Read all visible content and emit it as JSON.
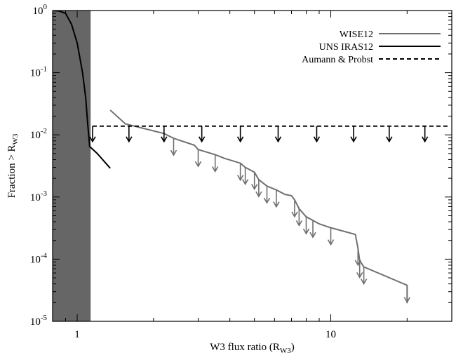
{
  "chart_data": {
    "type": "line",
    "xlabel_main": "W3 flux ratio (R",
    "xlabel_sub": "W3",
    "xlabel_end": ")",
    "ylabel_main": "Fraction > R",
    "ylabel_sub": "W3",
    "xscale": "log",
    "yscale": "log",
    "xlim": [
      0.8,
      30
    ],
    "ylim": [
      1e-05,
      1
    ],
    "grid": false,
    "legend_position": "top-right",
    "x_ticks": [
      {
        "value": 1,
        "label": "1"
      },
      {
        "value": 10,
        "label": "10"
      }
    ],
    "y_ticks": [
      {
        "value": 1,
        "base": "10",
        "exp": "0"
      },
      {
        "value": 0.1,
        "base": "10",
        "exp": "-1"
      },
      {
        "value": 0.01,
        "base": "10",
        "exp": "-2"
      },
      {
        "value": 0.001,
        "base": "10",
        "exp": "-3"
      },
      {
        "value": 0.0001,
        "base": "10",
        "exp": "-4"
      },
      {
        "value": 1e-05,
        "base": "10",
        "exp": "-5"
      }
    ],
    "excluded_region": {
      "x_from": 0.8,
      "x_to": 1.13,
      "color": "#666666"
    },
    "series": [
      {
        "name": "WISE12",
        "color": "#707070",
        "style": "solid",
        "points": [
          [
            1.35,
            0.025
          ],
          [
            1.55,
            0.015
          ],
          [
            2.2,
            0.0105
          ],
          [
            2.4,
            0.0088
          ],
          [
            2.9,
            0.0068
          ],
          [
            3.0,
            0.0058
          ],
          [
            3.5,
            0.0048
          ],
          [
            3.8,
            0.0042
          ],
          [
            4.4,
            0.0035
          ],
          [
            4.6,
            0.003
          ],
          [
            5.0,
            0.0025
          ],
          [
            5.2,
            0.0019
          ],
          [
            5.6,
            0.0015
          ],
          [
            6.1,
            0.0013
          ],
          [
            6.6,
            0.0011
          ],
          [
            7.0,
            0.00105
          ],
          [
            7.2,
            0.0009
          ],
          [
            7.5,
            0.00065
          ],
          [
            8.0,
            0.00048
          ],
          [
            8.5,
            0.00042
          ],
          [
            9.0,
            0.00037
          ],
          [
            10.0,
            0.00032
          ],
          [
            12.5,
            0.00025
          ],
          [
            12.8,
            0.00015
          ],
          [
            13.0,
            9.5e-05
          ],
          [
            13.5,
            7.5e-05
          ],
          [
            20.0,
            3.8e-05
          ],
          [
            20.0,
            1.95e-05
          ]
        ],
        "upper_limit_arrows": [
          [
            2.4,
            0.0088
          ],
          [
            3.0,
            0.0058
          ],
          [
            3.5,
            0.0048
          ],
          [
            4.4,
            0.0035
          ],
          [
            4.6,
            0.003
          ],
          [
            5.0,
            0.0025
          ],
          [
            5.2,
            0.0019
          ],
          [
            5.6,
            0.0015
          ],
          [
            6.1,
            0.0013
          ],
          [
            7.2,
            0.0009
          ],
          [
            7.5,
            0.00065
          ],
          [
            8.0,
            0.00048
          ],
          [
            8.5,
            0.00042
          ],
          [
            10.0,
            0.00032
          ],
          [
            12.8,
            0.00015
          ],
          [
            13.0,
            9.5e-05
          ],
          [
            13.5,
            7.5e-05
          ],
          [
            20.0,
            3.8e-05
          ]
        ]
      },
      {
        "name": "UNS IRAS12",
        "color": "#000000",
        "style": "solid",
        "points": [
          [
            0.8,
            1.0
          ],
          [
            0.85,
            0.98
          ],
          [
            0.9,
            0.9
          ],
          [
            0.95,
            0.6
          ],
          [
            1.0,
            0.3
          ],
          [
            1.05,
            0.1
          ],
          [
            1.08,
            0.04
          ],
          [
            1.1,
            0.015
          ],
          [
            1.12,
            0.0065
          ],
          [
            1.2,
            0.005
          ],
          [
            1.35,
            0.0029
          ]
        ]
      },
      {
        "name": "Aumann & Probst",
        "color": "#000000",
        "style": "dashed",
        "points": [
          [
            1.15,
            0.0138
          ],
          [
            29.5,
            0.0138
          ]
        ],
        "upper_limit_arrows": [
          [
            1.15,
            0.0138
          ],
          [
            1.6,
            0.0138
          ],
          [
            2.2,
            0.0138
          ],
          [
            3.1,
            0.0138
          ],
          [
            4.4,
            0.0138
          ],
          [
            6.2,
            0.0138
          ],
          [
            8.8,
            0.0138
          ],
          [
            12.3,
            0.0138
          ],
          [
            17.0,
            0.0138
          ],
          [
            23.5,
            0.0138
          ]
        ]
      }
    ]
  }
}
